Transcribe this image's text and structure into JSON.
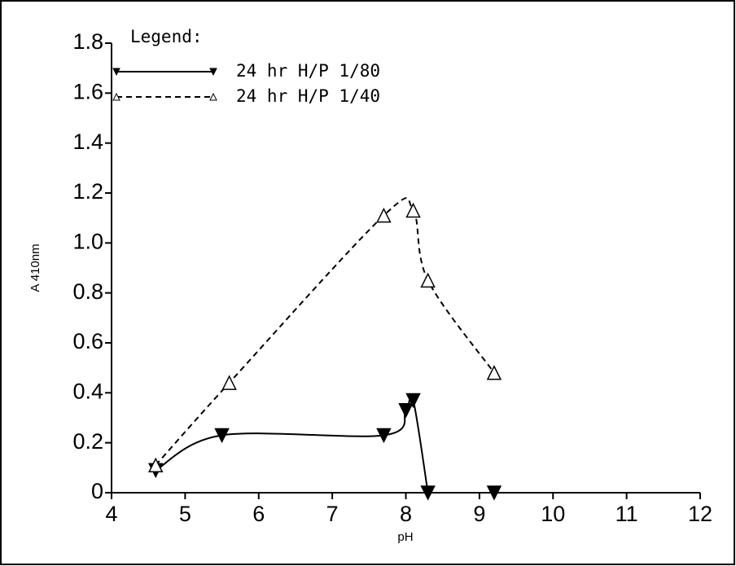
{
  "chart_data": {
    "type": "line",
    "legend_title": "Legend:",
    "x_label": "pH",
    "y_label": "A 410nm",
    "xlim": [
      4,
      12
    ],
    "xticks": [
      4,
      5,
      6,
      7,
      8,
      9,
      10,
      11,
      12
    ],
    "ylim": [
      0,
      1.8
    ],
    "yticks": [
      0,
      0.2,
      0.4,
      0.6,
      0.8,
      {
        "value": 1,
        "label": "1.0"
      },
      1.2,
      1.4,
      1.6,
      1.8
    ],
    "legend": "upper left",
    "series": [
      {
        "name": "24 hr H/P 1/80",
        "color": "#000000",
        "marker": "filled-down-triangle",
        "dash": "solid",
        "x": [
          4.6,
          5.5,
          7.7,
          8.0,
          8.1,
          8.3,
          9.2
        ],
        "values": [
          0.09,
          0.23,
          0.23,
          0.33,
          0.37,
          0,
          0
        ]
      },
      {
        "name": "24 hr H/P 1/40",
        "color": "#000000",
        "marker": "open-up-triangle",
        "dash": "dashed",
        "x": [
          4.6,
          5.6,
          7.7,
          8.1,
          8.3,
          9.2
        ],
        "values": [
          0.11,
          0.44,
          1.11,
          1.13,
          0.85,
          0.48
        ]
      }
    ]
  }
}
